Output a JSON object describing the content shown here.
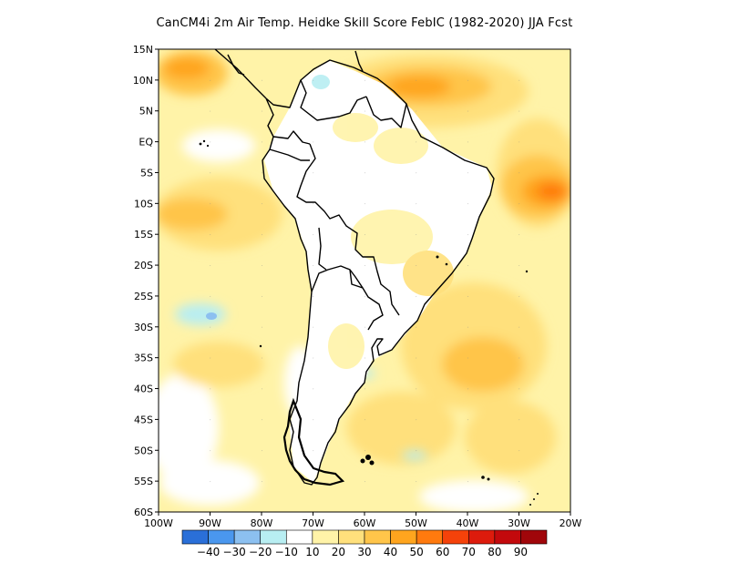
{
  "title": "CanCM4i  2m Air Temp. Heidke Skill Score FebIC (1982-2020) JJA Fcst",
  "lat_labels": [
    "15N",
    "10N",
    "5N",
    "EQ",
    "5S",
    "10S",
    "15S",
    "20S",
    "25S",
    "30S",
    "35S",
    "40S",
    "45S",
    "50S",
    "55S",
    "60S"
  ],
  "lon_labels": [
    "100W",
    "90W",
    "80W",
    "70W",
    "60W",
    "50W",
    "40W",
    "30W",
    "20W"
  ],
  "colorbar": {
    "colors": [
      "#2a6fd8",
      "#4a97ee",
      "#8cc0f0",
      "#b8eef2",
      "#ffffff",
      "#fff3a8",
      "#ffe07c",
      "#ffc54a",
      "#ffa51e",
      "#ff7a0e",
      "#f5420a",
      "#dd1b0c",
      "#c3090c",
      "#a0060a"
    ],
    "labels": [
      "−40",
      "−30",
      "−20",
      "−10",
      "10",
      "20",
      "30",
      "40",
      "50",
      "60",
      "70",
      "80",
      "90"
    ]
  }
}
